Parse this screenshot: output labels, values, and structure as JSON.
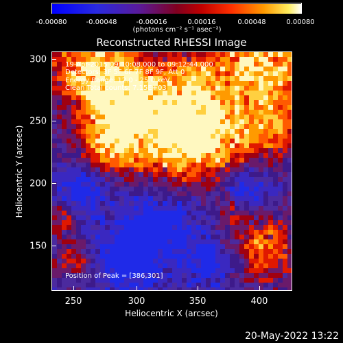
{
  "colorbar": {
    "ticks": [
      "-0.00080",
      "-0.00048",
      "-0.00016",
      "0.00016",
      "0.00048",
      "0.00080"
    ],
    "unit": "(photons cm⁻² s⁻¹ asec⁻²)"
  },
  "title": "Reconstructed RHESSI Image",
  "annotations": {
    "time": "19-Apr-2015 09:10:08.000 to 09:12:44.000",
    "detectors": "Detectors: 3F 5F 6F 7F 8F 9F, Att 0",
    "energy": "Energy Range: 12.0 - 25.0 keV",
    "clean": "Clean     Total counts: 7.15E+03",
    "peak": "Position of Peak = [386,301]"
  },
  "axes": {
    "xlabel": "Heliocentric X (arcsec)",
    "ylabel": "Heliocentric Y (arcsec)",
    "xticks": [
      "250",
      "300",
      "350",
      "400"
    ],
    "yticks": [
      "300",
      "250",
      "200",
      "150"
    ]
  },
  "datestamp": "20-May-2022 13:22",
  "colors": {
    "low": "#1010ff",
    "mid": "#3d1a8a",
    "high": "#ff9a00",
    "peak": "#ffffff"
  }
}
